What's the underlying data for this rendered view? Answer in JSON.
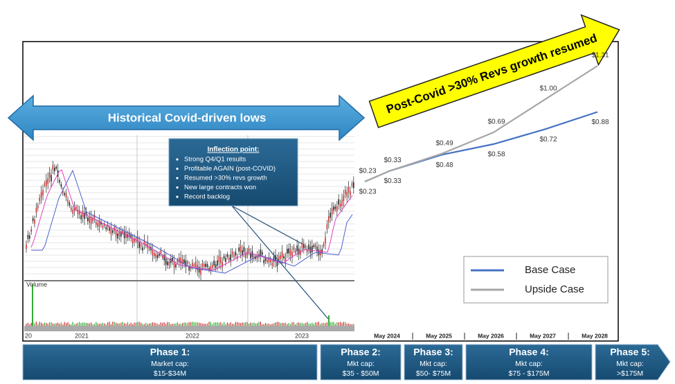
{
  "chart_data": {
    "type": "line",
    "categories": [
      null,
      "May 2024",
      "May 2025",
      "May 2026",
      "May 2027",
      "May 2028"
    ],
    "series": [
      {
        "name": "Base Case",
        "color": "#4472c4",
        "values": [
          0.23,
          0.33,
          0.48,
          0.58,
          0.72,
          0.88
        ],
        "value_labels": [
          "$0.23",
          "$0.33",
          "$0.48",
          "$0.58",
          "$0.72",
          "$0.88"
        ]
      },
      {
        "name": "Upside Case",
        "color": "#a6a6a6",
        "values": [
          0.23,
          0.33,
          0.49,
          0.69,
          1.0,
          1.31
        ],
        "value_labels": [
          "$0.23",
          "$0.33",
          "$0.49",
          "$0.69",
          "$1.00",
          "$1.31"
        ]
      }
    ]
  },
  "annotations": {
    "historical": "Historical Covid-driven lows",
    "growth": "Post-Covid >30% Revs growth resumed"
  },
  "inflection": {
    "title": "Inflection point:",
    "bullets": [
      "Strong Q4/Q1 results",
      "Profitable AGAIN (post-COVID)",
      "Resumed >30% revs growth",
      "New large contracts won",
      "Record backlog"
    ]
  },
  "stock_chart": {
    "volume_label": "Volume",
    "years": [
      "20",
      "2021",
      "2022",
      "2023"
    ]
  },
  "phases": [
    {
      "title": "Phase 1:",
      "cap_label": "Market cap:",
      "range": "$15-$34M"
    },
    {
      "title": "Phase 2:",
      "cap_label": "Mkt cap:",
      "range": "$35 - $50M"
    },
    {
      "title": "Phase 3:",
      "cap_label": "Mkt cap:",
      "range": "$50- $75M"
    },
    {
      "title": "Phase 4:",
      "cap_label": "Mkt cap:",
      "range": "$75 - $175M"
    },
    {
      "title": "Phase 5:",
      "cap_label": "Mkt cap:",
      "range": ">$175M"
    }
  ]
}
